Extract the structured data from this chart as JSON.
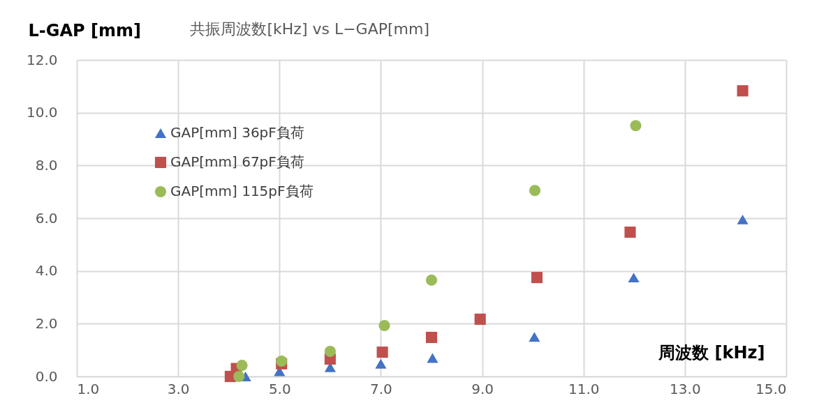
{
  "chart_data": {
    "type": "scatter",
    "title": "共振周波数[kHz] vs L−GAP[mm]",
    "xlabel": "周波数 [kHz]",
    "ylabel": "L-GAP [mm]",
    "xlim": [
      1,
      15
    ],
    "ylim": [
      0,
      12
    ],
    "xticks": [
      {
        "value": 1,
        "label": "1.0"
      },
      {
        "value": 3,
        "label": "3.0"
      },
      {
        "value": 5,
        "label": "5.0"
      },
      {
        "value": 7,
        "label": "7.0"
      },
      {
        "value": 9,
        "label": "9.0"
      },
      {
        "value": 11,
        "label": "11.0"
      },
      {
        "value": 13,
        "label": "13.0"
      },
      {
        "value": 15,
        "label": "15.0"
      }
    ],
    "yticks": [
      {
        "value": 0,
        "label": "0.0"
      },
      {
        "value": 2,
        "label": "2.0"
      },
      {
        "value": 4,
        "label": "4.0"
      },
      {
        "value": 6,
        "label": "6.0"
      },
      {
        "value": 8,
        "label": "8.0"
      },
      {
        "value": 10,
        "label": "10.0"
      },
      {
        "value": 12,
        "label": "12.0"
      }
    ],
    "grid": true,
    "legend": "top left",
    "series": [
      {
        "name": "GAP[mm] 36pF負荷",
        "color": "#4472c4",
        "marker": "triangle",
        "x": [
          4.33,
          5.0,
          6.0,
          7.0,
          8.02,
          10.03,
          11.99,
          14.14
        ],
        "values": [
          0.0,
          0.2,
          0.35,
          0.48,
          0.7,
          1.5,
          3.75,
          5.95
        ]
      },
      {
        "name": "GAP[mm] 67pF負荷",
        "color": "#c0504d",
        "marker": "square",
        "x": [
          4.03,
          4.15,
          5.04,
          6.0,
          7.03,
          8.0,
          8.96,
          10.08,
          11.92,
          14.14
        ],
        "values": [
          0.0,
          0.3,
          0.48,
          0.66,
          0.92,
          1.48,
          2.17,
          3.75,
          5.47,
          10.83
        ]
      },
      {
        "name": "GAP[mm] 115pF負荷",
        "color": "#9bbb59",
        "marker": "circle",
        "x": [
          4.26,
          4.2,
          5.04,
          6.0,
          7.07,
          8.0,
          10.04,
          12.03
        ],
        "values": [
          0.42,
          0.0,
          0.58,
          0.95,
          1.93,
          3.65,
          7.05,
          9.51
        ]
      }
    ]
  }
}
